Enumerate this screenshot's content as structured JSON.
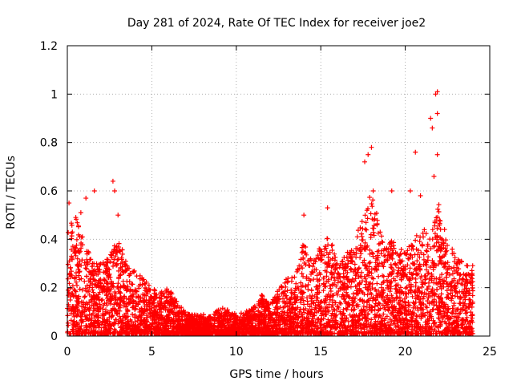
{
  "chart_data": {
    "type": "scatter",
    "title": "Day 281 of 2024, Rate Of TEC Index for receiver joe2",
    "xlabel": "GPS time / hours",
    "ylabel": "ROTI / TECUs",
    "xlim": [
      0,
      25
    ],
    "ylim": [
      0,
      1.2
    ],
    "x_ticks": [
      "0",
      "5",
      "10",
      "15",
      "20",
      "25"
    ],
    "y_ticks": [
      "0",
      "0.2",
      "0.4",
      "0.6",
      "0.8",
      "1",
      "1.2"
    ],
    "grid": true,
    "marker": "+",
    "series": [
      {
        "name": "ROTI",
        "color": "#ff0000",
        "envelope_hours": [
          0,
          0.5,
          1,
          1.5,
          2,
          2.5,
          3,
          3.5,
          4,
          4.5,
          5,
          5.5,
          6,
          6.5,
          7,
          7.5,
          8,
          8.5,
          9,
          9.5,
          10,
          10.5,
          11,
          11.5,
          12,
          12.5,
          13,
          13.5,
          14,
          14.5,
          15,
          15.5,
          16,
          16.5,
          17,
          17.5,
          18,
          18.5,
          19,
          19.5,
          20,
          20.5,
          21,
          21.5,
          22,
          22.5,
          23,
          23.5,
          24
        ],
        "envelope_max": [
          0.45,
          0.5,
          0.4,
          0.3,
          0.3,
          0.33,
          0.42,
          0.3,
          0.27,
          0.25,
          0.2,
          0.18,
          0.2,
          0.14,
          0.1,
          0.09,
          0.09,
          0.08,
          0.12,
          0.11,
          0.09,
          0.1,
          0.12,
          0.17,
          0.14,
          0.2,
          0.25,
          0.25,
          0.4,
          0.3,
          0.38,
          0.42,
          0.3,
          0.35,
          0.4,
          0.5,
          0.6,
          0.45,
          0.4,
          0.4,
          0.35,
          0.4,
          0.45,
          0.42,
          0.55,
          0.4,
          0.33,
          0.3,
          0.3
        ],
        "highlights": [
          [
            0.1,
            0.55
          ],
          [
            0.5,
            0.49
          ],
          [
            0.8,
            0.51
          ],
          [
            1.1,
            0.57
          ],
          [
            1.6,
            0.6
          ],
          [
            2.7,
            0.64
          ],
          [
            2.8,
            0.6
          ],
          [
            3.0,
            0.5
          ],
          [
            14.0,
            0.5
          ],
          [
            15.4,
            0.53
          ],
          [
            17.6,
            0.72
          ],
          [
            17.8,
            0.75
          ],
          [
            18.0,
            0.78
          ],
          [
            18.1,
            0.6
          ],
          [
            19.2,
            0.6
          ],
          [
            20.3,
            0.6
          ],
          [
            20.6,
            0.76
          ],
          [
            20.9,
            0.58
          ],
          [
            21.5,
            0.9
          ],
          [
            21.6,
            0.86
          ],
          [
            21.8,
            1.0
          ],
          [
            21.9,
            1.01
          ],
          [
            21.9,
            0.92
          ],
          [
            21.7,
            0.66
          ],
          [
            21.9,
            0.75
          ]
        ]
      }
    ]
  }
}
